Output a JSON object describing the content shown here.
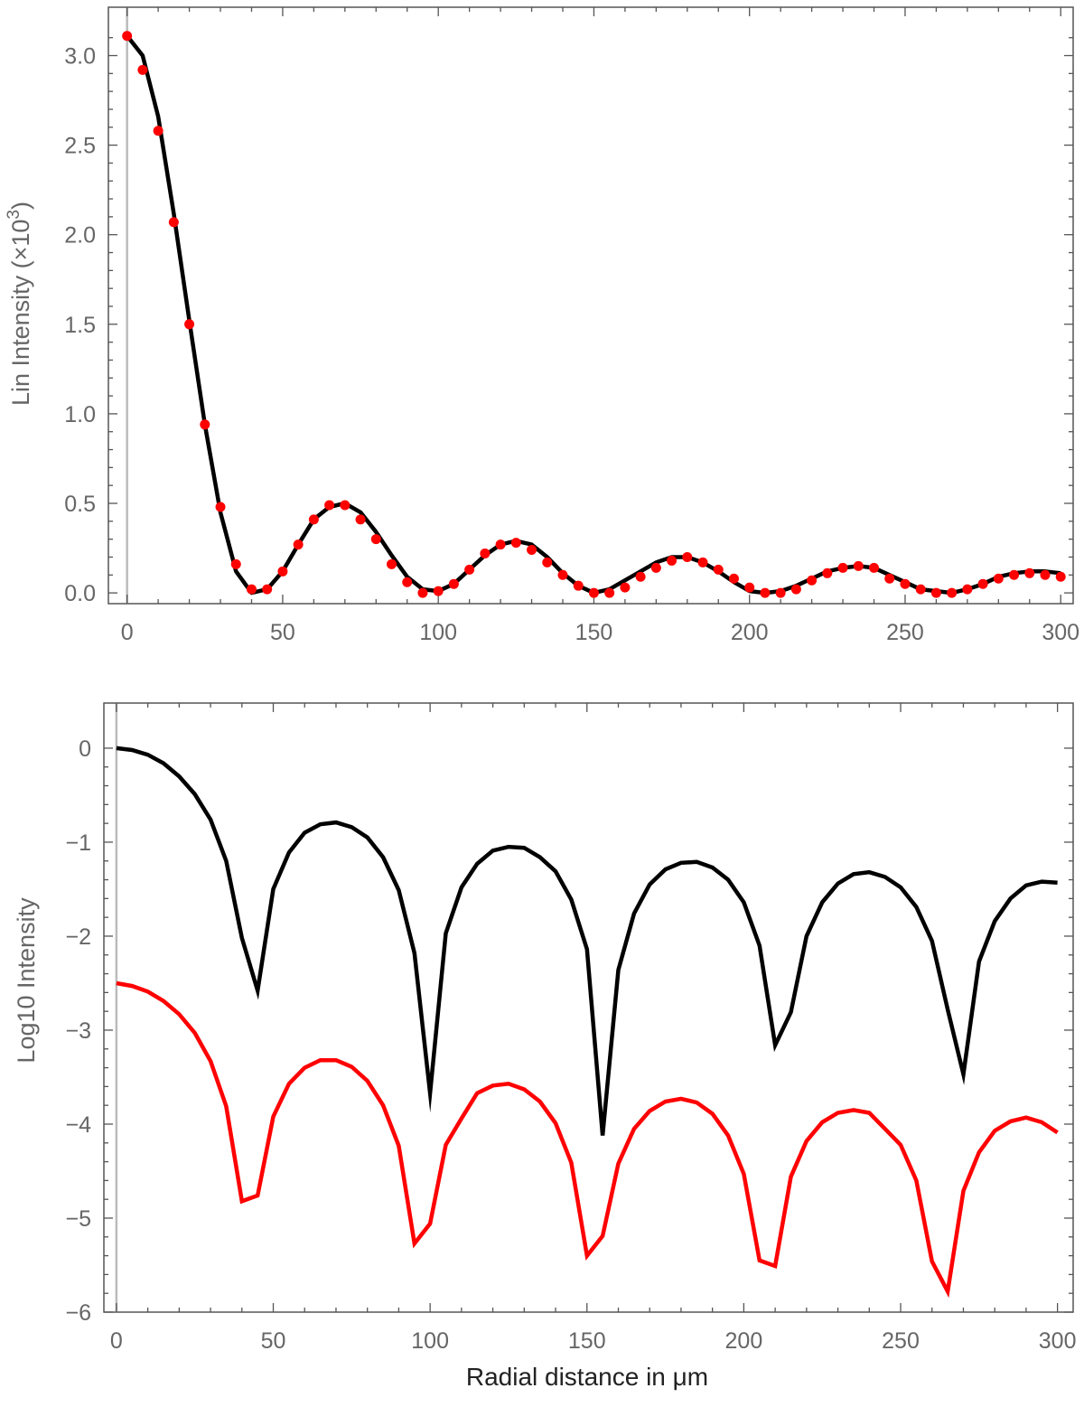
{
  "chart_data": [
    {
      "type": "scatter",
      "title": "",
      "xlabel": "",
      "ylabel_main": "Lin Intensity (×10",
      "ylabel_sup": "3",
      "ylabel_close": ")",
      "xlim": [
        -6,
        304
      ],
      "ylim": [
        -0.06,
        3.27
      ],
      "xticks": [
        0,
        50,
        100,
        150,
        200,
        250,
        300
      ],
      "xtick_labels": [
        "0",
        "50",
        "100",
        "150",
        "200",
        "250",
        "300"
      ],
      "yticks": [
        0.0,
        0.5,
        1.0,
        1.5,
        2.0,
        2.5,
        3.0
      ],
      "ytick_labels": [
        "0.0",
        "0.5",
        "1.0",
        "1.5",
        "2.0",
        "2.5",
        "3.0"
      ],
      "colors": {
        "line": "#000000",
        "points": "#ff0000",
        "zero_line": "#bbbbbb",
        "frame": "#555555"
      },
      "series": [
        {
          "style": "line",
          "x": [
            0,
            5,
            10,
            15,
            20,
            25,
            30,
            35,
            40,
            45,
            50,
            55,
            60,
            65,
            70,
            75,
            80,
            85,
            90,
            95,
            100,
            105,
            110,
            115,
            120,
            125,
            130,
            135,
            140,
            145,
            150,
            155,
            160,
            165,
            170,
            175,
            180,
            185,
            190,
            195,
            200,
            205,
            210,
            215,
            220,
            225,
            230,
            235,
            240,
            245,
            250,
            255,
            260,
            265,
            270,
            275,
            280,
            285,
            290,
            295,
            300
          ],
          "y": [
            3.11,
            3.0,
            2.66,
            2.12,
            1.52,
            0.94,
            0.45,
            0.12,
            0.0,
            0.02,
            0.12,
            0.27,
            0.41,
            0.48,
            0.5,
            0.45,
            0.34,
            0.21,
            0.09,
            0.02,
            0.01,
            0.05,
            0.13,
            0.21,
            0.27,
            0.29,
            0.27,
            0.2,
            0.11,
            0.04,
            0.0,
            0.02,
            0.07,
            0.12,
            0.17,
            0.2,
            0.2,
            0.17,
            0.12,
            0.06,
            0.01,
            0.0,
            0.01,
            0.04,
            0.08,
            0.12,
            0.14,
            0.15,
            0.14,
            0.1,
            0.06,
            0.02,
            0.01,
            0.0,
            0.02,
            0.05,
            0.09,
            0.11,
            0.12,
            0.12,
            0.11
          ]
        },
        {
          "style": "points",
          "x": [
            0,
            5,
            10,
            15,
            20,
            25,
            30,
            35,
            40,
            45,
            50,
            55,
            60,
            65,
            70,
            75,
            80,
            85,
            90,
            95,
            100,
            105,
            110,
            115,
            120,
            125,
            130,
            135,
            140,
            145,
            150,
            155,
            160,
            165,
            170,
            175,
            180,
            185,
            190,
            195,
            200,
            205,
            210,
            215,
            220,
            225,
            230,
            235,
            240,
            245,
            250,
            255,
            260,
            265,
            270,
            275,
            280,
            285,
            290,
            295,
            300
          ],
          "y": [
            3.11,
            2.92,
            2.58,
            2.07,
            1.5,
            0.94,
            0.48,
            0.16,
            0.02,
            0.02,
            0.12,
            0.27,
            0.41,
            0.49,
            0.49,
            0.41,
            0.3,
            0.16,
            0.06,
            0.0,
            0.01,
            0.05,
            0.13,
            0.22,
            0.27,
            0.28,
            0.24,
            0.17,
            0.1,
            0.04,
            0.0,
            0.0,
            0.03,
            0.09,
            0.14,
            0.18,
            0.2,
            0.17,
            0.13,
            0.08,
            0.03,
            0.0,
            0.0,
            0.02,
            0.07,
            0.11,
            0.14,
            0.15,
            0.14,
            0.08,
            0.05,
            0.02,
            0.0,
            0.0,
            0.02,
            0.05,
            0.08,
            0.1,
            0.11,
            0.1,
            0.09
          ]
        }
      ]
    },
    {
      "type": "line",
      "title": "",
      "xlabel": "Radial distance in μm",
      "ylabel": "Log10 Intensity",
      "xlim": [
        -4,
        305
      ],
      "ylim": [
        -6.0,
        0.48
      ],
      "xticks": [
        0,
        50,
        100,
        150,
        200,
        250,
        300
      ],
      "xtick_labels": [
        "0",
        "50",
        "100",
        "150",
        "200",
        "250",
        "300"
      ],
      "yticks": [
        0,
        -1,
        -2,
        -3,
        -4,
        -5,
        -6
      ],
      "ytick_labels": [
        "0",
        "−1",
        "−2",
        "−3",
        "−4",
        "−5",
        "−6"
      ],
      "colors": {
        "black_series": "#000000",
        "red_series": "#ff0000",
        "zero_line": "#bbbbbb",
        "frame": "#555555"
      },
      "series": [
        {
          "color": "#000000",
          "x": [
            0,
            5,
            10,
            15,
            20,
            25,
            30,
            35,
            40,
            45,
            50,
            55,
            60,
            65,
            70,
            75,
            80,
            85,
            90,
            95,
            100,
            105,
            110,
            115,
            120,
            125,
            130,
            135,
            140,
            145,
            150,
            155,
            160,
            165,
            170,
            175,
            180,
            185,
            190,
            195,
            200,
            205,
            210,
            215,
            220,
            225,
            230,
            235,
            240,
            245,
            250,
            255,
            260,
            265,
            270,
            275,
            280,
            285,
            290,
            295,
            300
          ],
          "y": [
            0.0,
            -0.02,
            -0.07,
            -0.16,
            -0.3,
            -0.49,
            -0.76,
            -1.2,
            -2.02,
            -2.58,
            -1.5,
            -1.11,
            -0.9,
            -0.81,
            -0.79,
            -0.84,
            -0.95,
            -1.16,
            -1.51,
            -2.18,
            -3.67,
            -1.97,
            -1.48,
            -1.23,
            -1.09,
            -1.05,
            -1.06,
            -1.16,
            -1.31,
            -1.61,
            -2.14,
            -4.12,
            -2.36,
            -1.76,
            -1.45,
            -1.29,
            -1.22,
            -1.21,
            -1.27,
            -1.4,
            -1.64,
            -2.1,
            -3.16,
            -2.81,
            -2.0,
            -1.64,
            -1.44,
            -1.34,
            -1.32,
            -1.37,
            -1.48,
            -1.69,
            -2.05,
            -2.78,
            -3.47,
            -2.27,
            -1.84,
            -1.6,
            -1.46,
            -1.42,
            -1.43
          ]
        },
        {
          "color": "#ff0000",
          "x": [
            0,
            5,
            10,
            15,
            20,
            25,
            30,
            35,
            40,
            45,
            50,
            55,
            60,
            65,
            70,
            75,
            80,
            85,
            90,
            95,
            100,
            105,
            110,
            115,
            120,
            125,
            130,
            135,
            140,
            145,
            150,
            155,
            160,
            165,
            170,
            175,
            180,
            185,
            190,
            195,
            200,
            205,
            210,
            215,
            220,
            225,
            230,
            235,
            240,
            245,
            250,
            255,
            260,
            265,
            270,
            275,
            280,
            285,
            290,
            295,
            300
          ],
          "y": [
            -2.5,
            -2.53,
            -2.59,
            -2.69,
            -2.83,
            -3.03,
            -3.33,
            -3.81,
            -4.82,
            -4.76,
            -3.92,
            -3.57,
            -3.4,
            -3.32,
            -3.32,
            -3.39,
            -3.54,
            -3.8,
            -4.23,
            -5.27,
            -5.06,
            -4.22,
            -3.94,
            -3.67,
            -3.59,
            -3.57,
            -3.63,
            -3.76,
            -3.99,
            -4.41,
            -5.4,
            -5.19,
            -4.42,
            -4.05,
            -3.86,
            -3.76,
            -3.73,
            -3.77,
            -3.89,
            -4.12,
            -4.53,
            -5.45,
            -5.51,
            -4.56,
            -4.18,
            -3.98,
            -3.88,
            -3.85,
            -3.88,
            -4.05,
            -4.22,
            -4.6,
            -5.46,
            -5.78,
            -4.71,
            -4.3,
            -4.07,
            -3.97,
            -3.93,
            -3.98,
            -4.09
          ]
        }
      ]
    }
  ]
}
